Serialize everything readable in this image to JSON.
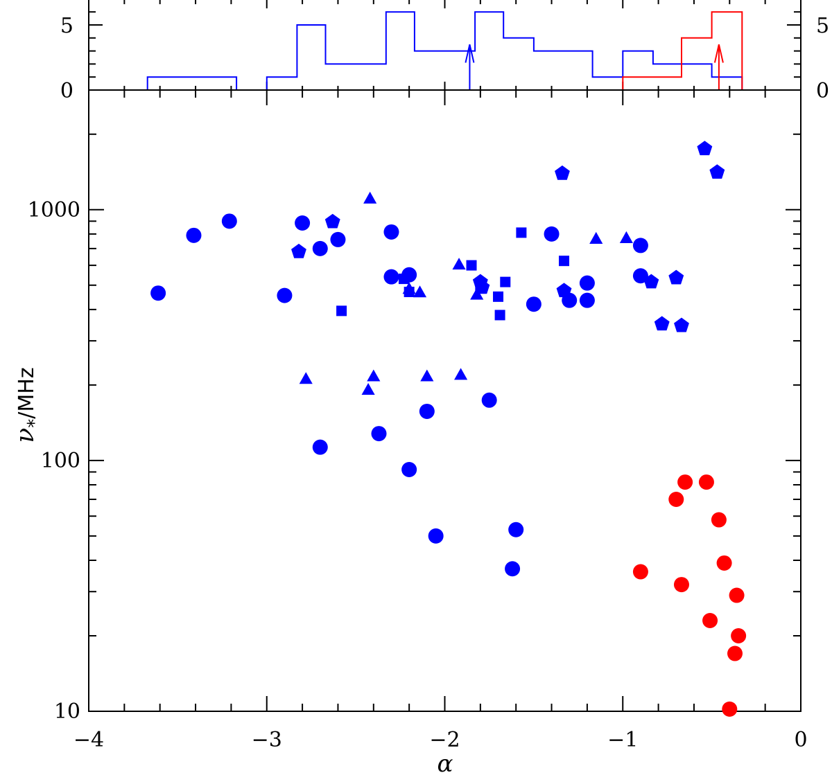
{
  "chart_data": [
    {
      "type": "histogram",
      "panel": "top",
      "xlim": [
        -4,
        0
      ],
      "ylim": [
        0,
        7
      ],
      "yticks": [
        0,
        5
      ],
      "yticks_right": [
        0,
        5
      ],
      "ytick_labels": [
        "0",
        "5"
      ],
      "colors": {
        "blue": "#0000ff",
        "red": "#ff0000"
      },
      "series": [
        {
          "color": "#0000ff",
          "edges": [
            -3.67,
            -3.17,
            -3.0,
            -2.83,
            -2.67,
            -2.5,
            -2.33,
            -2.17,
            -2.0,
            -1.83,
            -1.67,
            -1.5,
            -1.33,
            -1.17,
            -1.0,
            -0.83,
            -0.67,
            -0.5,
            -0.33
          ],
          "counts": [
            1,
            0,
            1,
            5,
            2,
            2,
            6,
            3,
            3,
            6,
            4,
            3,
            3,
            1,
            3,
            2,
            2,
            1
          ],
          "median_arrow": -1.86
        },
        {
          "color": "#ff0000",
          "edges": [
            -1.0,
            -0.67,
            -0.5,
            -0.33
          ],
          "counts": [
            1,
            4,
            6
          ],
          "median_arrow": -0.46
        }
      ]
    },
    {
      "type": "scatter",
      "panel": "main",
      "xlabel": "α",
      "ylabel": "ν*/MHz",
      "xlim": [
        -4,
        0
      ],
      "ylim": [
        10,
        3000
      ],
      "yscale": "log",
      "xticks": [
        -4,
        -3,
        -2,
        -1,
        0
      ],
      "xtick_labels": [
        "−4",
        "−3",
        "−2",
        "−1",
        "0"
      ],
      "yticks": [
        10,
        100,
        1000
      ],
      "ytick_labels": [
        "10",
        "100",
        "1000"
      ],
      "grid": false,
      "series": [
        {
          "color": "#0000ff",
          "marker": "circle",
          "points": [
            [
              -3.61,
              465
            ],
            [
              -3.41,
              790
            ],
            [
              -3.21,
              900
            ],
            [
              -2.9,
              455
            ],
            [
              -2.8,
              885
            ],
            [
              -2.7,
              700
            ],
            [
              -2.6,
              760
            ],
            [
              -2.3,
              815
            ],
            [
              -2.3,
              540
            ],
            [
              -2.2,
              550
            ],
            [
              -1.5,
              420
            ],
            [
              -1.4,
              800
            ],
            [
              -1.3,
              435
            ],
            [
              -1.2,
              510
            ],
            [
              -1.2,
              435
            ],
            [
              -0.9,
              720
            ],
            [
              -0.9,
              545
            ],
            [
              -2.7,
              113
            ],
            [
              -2.37,
              128
            ],
            [
              -2.1,
              157
            ],
            [
              -1.75,
              174
            ],
            [
              -2.2,
              92
            ],
            [
              -2.05,
              50
            ],
            [
              -1.6,
              53
            ],
            [
              -1.62,
              37
            ]
          ]
        },
        {
          "color": "#0000ff",
          "marker": "square",
          "points": [
            [
              -2.58,
              395
            ],
            [
              -2.23,
              530
            ],
            [
              -2.2,
              470
            ],
            [
              -1.85,
              600
            ],
            [
              -1.8,
              495
            ],
            [
              -1.7,
              450
            ],
            [
              -1.69,
              380
            ],
            [
              -1.66,
              515
            ],
            [
              -1.57,
              810
            ],
            [
              -1.33,
              625
            ]
          ]
        },
        {
          "color": "#0000ff",
          "marker": "triangle",
          "points": [
            [
              -2.42,
              1100
            ],
            [
              -2.78,
              210
            ],
            [
              -2.4,
              215
            ],
            [
              -2.43,
              190
            ],
            [
              -2.2,
              480
            ],
            [
              -2.14,
              465
            ],
            [
              -2.1,
              215
            ],
            [
              -1.92,
              600
            ],
            [
              -1.91,
              218
            ],
            [
              -1.82,
              455
            ],
            [
              -1.15,
              760
            ],
            [
              -0.98,
              765
            ]
          ]
        },
        {
          "color": "#0000ff",
          "marker": "pentagon",
          "points": [
            [
              -2.63,
              895
            ],
            [
              -2.82,
              680
            ],
            [
              -1.8,
              515
            ],
            [
              -1.79,
              490
            ],
            [
              -1.34,
              1395
            ],
            [
              -1.33,
              475
            ],
            [
              -0.84,
              515
            ],
            [
              -0.78,
              350
            ],
            [
              -0.7,
              535
            ],
            [
              -0.67,
              345
            ],
            [
              -0.54,
              1750
            ],
            [
              -0.47,
              1410
            ]
          ]
        },
        {
          "color": "#ff0000",
          "marker": "circle",
          "points": [
            [
              -0.65,
              82
            ],
            [
              -0.53,
              82
            ],
            [
              -0.7,
              70
            ],
            [
              -0.46,
              58
            ],
            [
              -0.9,
              36
            ],
            [
              -0.67,
              32
            ],
            [
              -0.43,
              39
            ],
            [
              -0.36,
              29
            ],
            [
              -0.51,
              23
            ],
            [
              -0.35,
              20
            ],
            [
              -0.37,
              17
            ],
            [
              -0.4,
              10.2
            ]
          ]
        }
      ]
    }
  ]
}
